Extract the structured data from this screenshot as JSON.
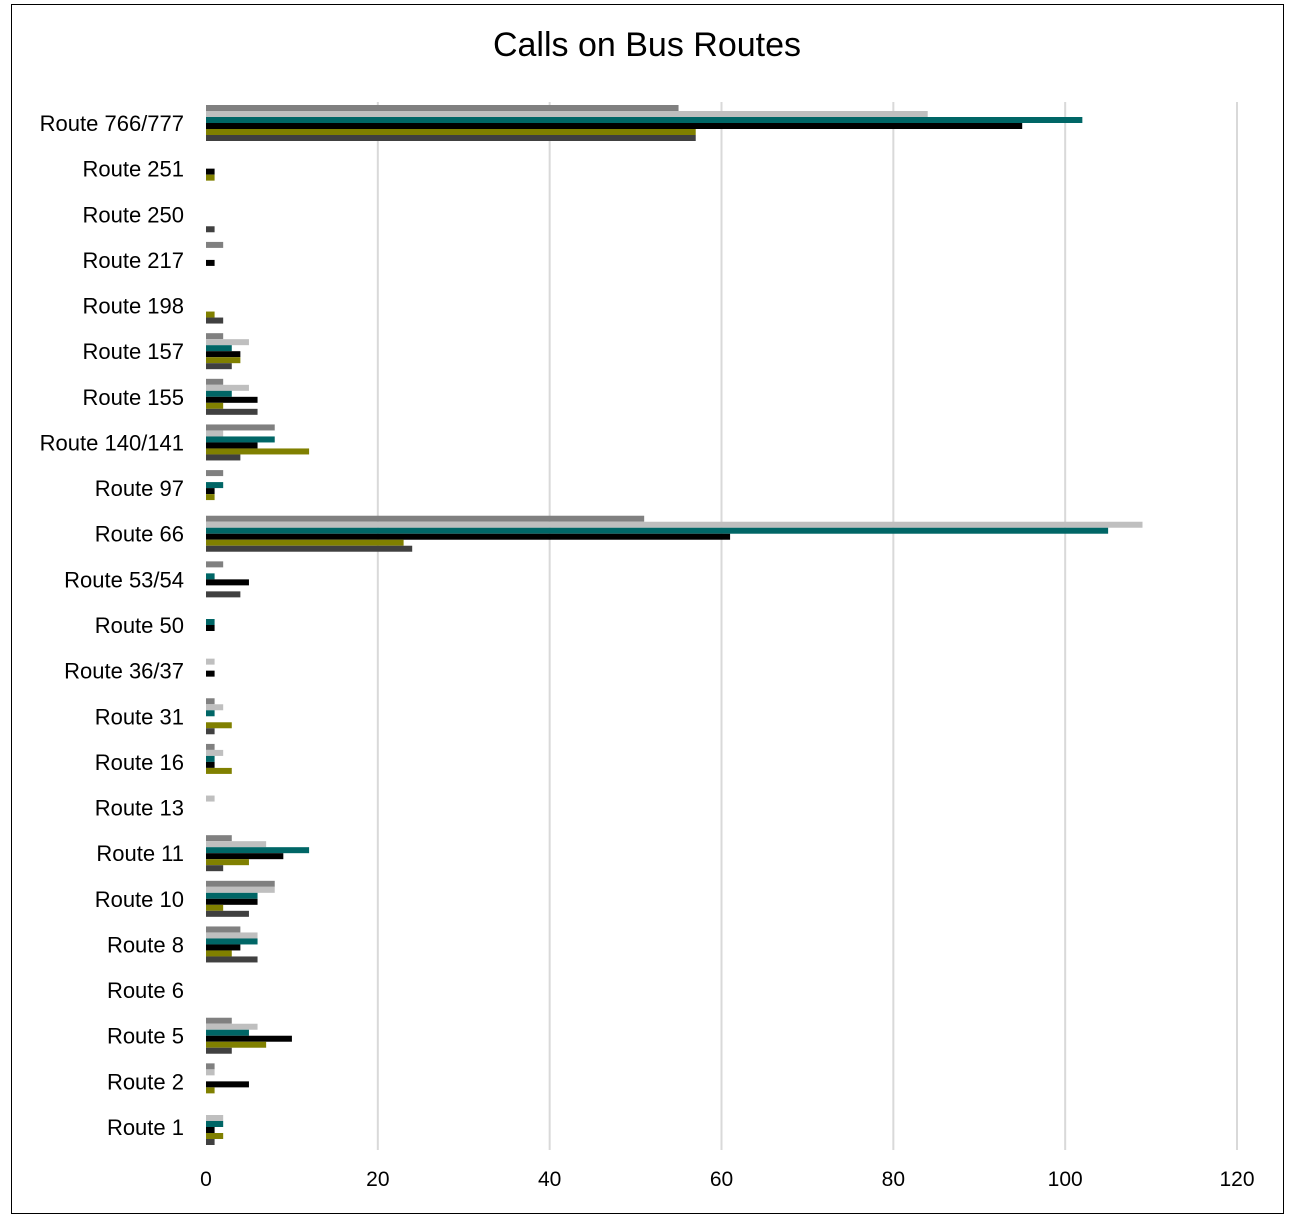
{
  "chart_data": {
    "type": "bar",
    "orientation": "horizontal",
    "title": "Calls on Bus Routes",
    "xlabel": "",
    "ylabel": "",
    "xlim": [
      0,
      120
    ],
    "xticks": [
      0,
      20,
      40,
      60,
      80,
      100,
      120
    ],
    "grid": true,
    "legend": "none",
    "categories": [
      "Route 766/777",
      "Route 251",
      "Route 250",
      "Route 217",
      "Route 198",
      "Route 157",
      "Route 155",
      "Route 140/141",
      "Route 97",
      "Route 66",
      "Route 53/54",
      "Route 50",
      "Route 36/37",
      "Route 31",
      "Route 16",
      "Route 13",
      "Route 11",
      "Route 10",
      "Route 8",
      "Route 6",
      "Route 5",
      "Route 2",
      "Route 1"
    ],
    "series": [
      {
        "color": "#808080",
        "values": [
          55,
          0,
          0,
          2,
          0,
          2,
          2,
          8,
          2,
          51,
          2,
          0,
          0,
          1,
          1,
          0,
          3,
          8,
          4,
          0,
          3,
          1,
          0
        ]
      },
      {
        "color": "#bfbfbf",
        "values": [
          84,
          0,
          0,
          0,
          0,
          5,
          5,
          2,
          0,
          109,
          0,
          0,
          1,
          2,
          2,
          1,
          7,
          8,
          6,
          0,
          6,
          1,
          2
        ]
      },
      {
        "color": "#006666",
        "values": [
          102,
          0,
          0,
          0,
          0,
          3,
          3,
          8,
          2,
          105,
          1,
          1,
          0,
          1,
          1,
          0,
          12,
          6,
          6,
          0,
          5,
          0,
          2
        ]
      },
      {
        "color": "#000000",
        "values": [
          95,
          1,
          0,
          1,
          0,
          4,
          6,
          6,
          1,
          61,
          5,
          1,
          1,
          0,
          1,
          0,
          9,
          6,
          4,
          0,
          10,
          5,
          1
        ]
      },
      {
        "color": "#808000",
        "values": [
          57,
          1,
          0,
          0,
          1,
          4,
          2,
          12,
          1,
          23,
          0,
          0,
          0,
          3,
          3,
          0,
          5,
          2,
          3,
          0,
          7,
          1,
          2
        ]
      },
      {
        "color": "#404040",
        "values": [
          57,
          0,
          1,
          0,
          2,
          3,
          6,
          4,
          0,
          24,
          4,
          0,
          0,
          1,
          0,
          0,
          2,
          5,
          6,
          0,
          3,
          0,
          1
        ]
      }
    ]
  }
}
